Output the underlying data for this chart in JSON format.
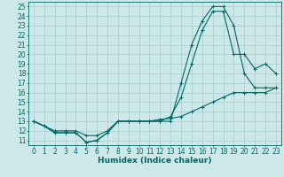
{
  "bg_color": "#cce8e8",
  "grid_color": "#a8cccc",
  "line_color": "#006666",
  "xlabel": "Humidex (Indice chaleur)",
  "xlabel_fontsize": 6.5,
  "tick_fontsize": 5.5,
  "xlim": [
    -0.5,
    23.5
  ],
  "ylim": [
    10.5,
    25.5
  ],
  "yticks": [
    11,
    12,
    13,
    14,
    15,
    16,
    17,
    18,
    19,
    20,
    21,
    22,
    23,
    24,
    25
  ],
  "xticks": [
    0,
    1,
    2,
    3,
    4,
    5,
    6,
    7,
    8,
    9,
    10,
    11,
    12,
    13,
    14,
    15,
    16,
    17,
    18,
    19,
    20,
    21,
    22,
    23
  ],
  "curve1_x": [
    0,
    1,
    2,
    3,
    4,
    5,
    6,
    7,
    8,
    9,
    10,
    11,
    12,
    13,
    14,
    15,
    16,
    17,
    18,
    19,
    20,
    21,
    22,
    23
  ],
  "curve1_y": [
    13,
    12.5,
    11.8,
    11.8,
    11.8,
    10.8,
    11.0,
    11.8,
    13,
    13,
    13,
    13,
    13,
    13,
    17,
    21,
    23.5,
    25,
    25,
    23,
    18,
    16.5,
    16.5,
    16.5
  ],
  "curve2_x": [
    0,
    1,
    2,
    3,
    4,
    5,
    6,
    7,
    8,
    9,
    10,
    11,
    12,
    13,
    14,
    15,
    16,
    17,
    18,
    19,
    20,
    21,
    22,
    23
  ],
  "curve2_y": [
    13,
    12.5,
    11.8,
    11.8,
    11.8,
    10.8,
    11.0,
    11.8,
    13,
    13,
    13,
    13,
    13,
    13.5,
    15.5,
    19,
    22.5,
    24.5,
    24.5,
    20,
    20,
    18.5,
    19,
    18
  ],
  "curve3_x": [
    0,
    1,
    2,
    3,
    4,
    5,
    6,
    7,
    8,
    9,
    10,
    11,
    12,
    13,
    14,
    15,
    16,
    17,
    18,
    19,
    20,
    21,
    22,
    23
  ],
  "curve3_y": [
    13,
    12.5,
    12,
    12,
    12,
    11.5,
    11.5,
    12,
    13,
    13,
    13,
    13,
    13.2,
    13.3,
    13.5,
    14,
    14.5,
    15,
    15.5,
    16,
    16,
    16,
    16,
    16.5
  ]
}
